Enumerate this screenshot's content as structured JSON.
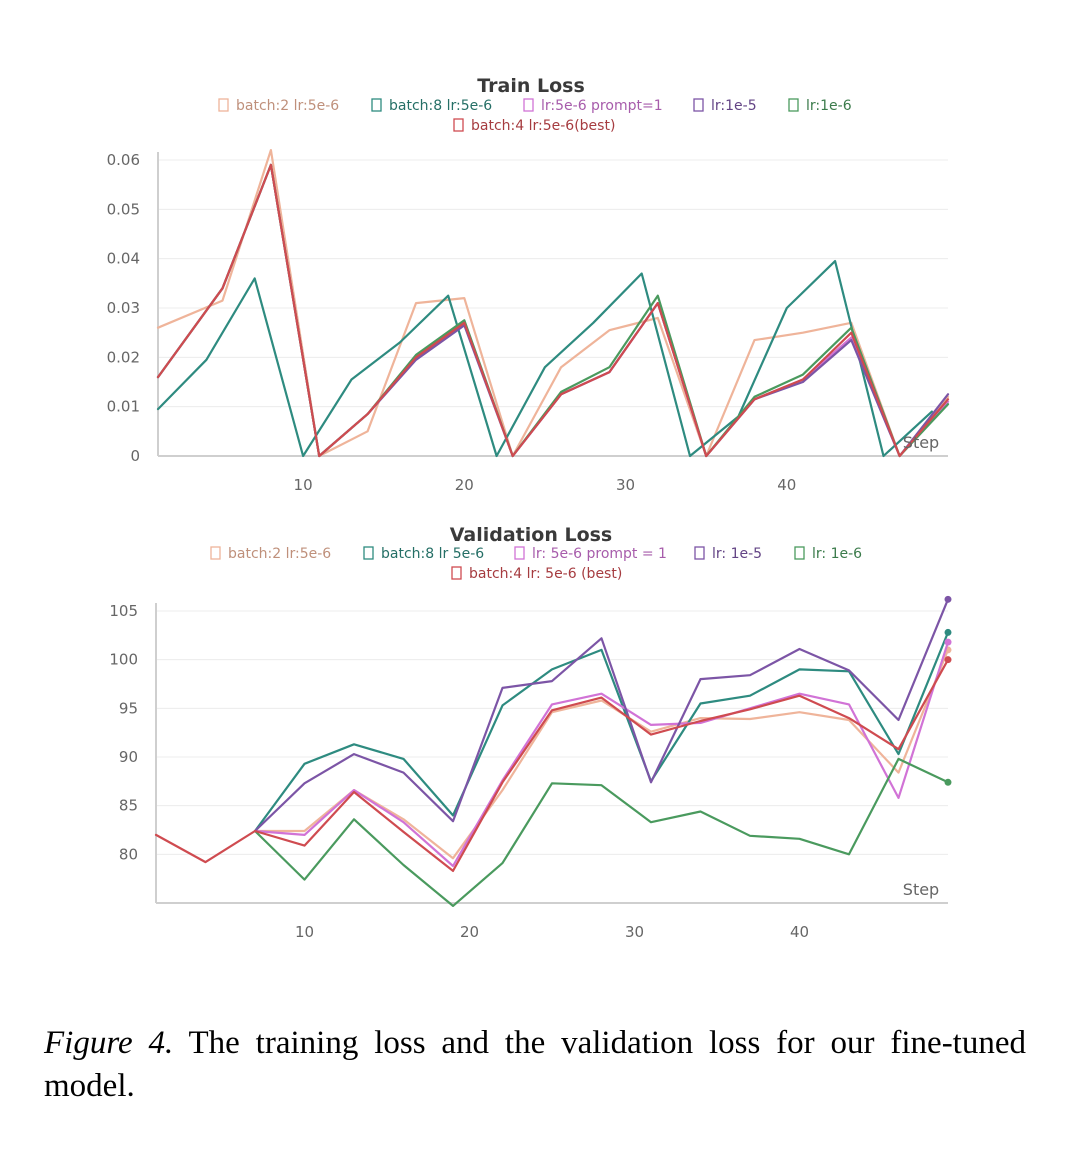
{
  "caption": {
    "label": "Figure 4.",
    "text": "The training loss and the validation loss for our fine-tuned model."
  },
  "colors": {
    "salmon": "#efb49a",
    "teal": "#2e8b80",
    "pink": "#d173d6",
    "purple": "#7c55a6",
    "green": "#4a9a5e",
    "red": "#cf4b50"
  },
  "chart_data": [
    {
      "type": "line",
      "title": "Train Loss",
      "xlabel": "Step",
      "ylabel": "",
      "xlim": [
        1,
        50
      ],
      "ylim": [
        0,
        0.06
      ],
      "x_ticks": [
        "10",
        "20",
        "30",
        "40"
      ],
      "y_ticks": [
        "0",
        "0.01",
        "0.02",
        "0.03",
        "0.04",
        "0.05",
        "0.06"
      ],
      "grid": true,
      "legend_position": "top",
      "series": [
        {
          "name": "batch:2 lr:5e-6",
          "color": "#efb49a",
          "points": [
            [
              1,
              0.026
            ],
            [
              5,
              0.0315
            ],
            [
              8,
              0.062
            ],
            [
              11,
              0
            ],
            [
              14,
              0.005
            ],
            [
              17,
              0.031
            ],
            [
              20,
              0.032
            ],
            [
              23,
              0
            ],
            [
              26,
              0.018
            ],
            [
              29,
              0.0255
            ],
            [
              32,
              0.028
            ],
            [
              35,
              0
            ],
            [
              38,
              0.0235
            ],
            [
              41,
              0.025
            ],
            [
              44,
              0.027
            ],
            [
              47,
              0
            ],
            [
              50,
              0.012
            ]
          ]
        },
        {
          "name": "batch:8 lr:5e-6",
          "color": "#2e8b80",
          "points": [
            [
              1,
              0.0095
            ],
            [
              4,
              0.0195
            ],
            [
              7,
              0.036
            ],
            [
              10,
              0
            ],
            [
              13,
              0.0155
            ],
            [
              16,
              0.023
            ],
            [
              19,
              0.0325
            ],
            [
              22,
              0
            ],
            [
              25,
              0.018
            ],
            [
              28,
              0.027
            ],
            [
              31,
              0.037
            ],
            [
              34,
              0
            ],
            [
              37,
              0.008
            ],
            [
              40,
              0.03
            ],
            [
              43,
              0.0395
            ],
            [
              46,
              0
            ],
            [
              49,
              0.009
            ]
          ]
        },
        {
          "name": "lr:5e-6 prompt=1",
          "color": "#d173d6",
          "points": [
            [
              1,
              0.016
            ],
            [
              5,
              0.034
            ],
            [
              8,
              0.059
            ],
            [
              11,
              0
            ],
            [
              14,
              0.0085
            ],
            [
              17,
              0.02
            ],
            [
              20,
              0.027
            ],
            [
              23,
              0
            ],
            [
              26,
              0.0125
            ],
            [
              29,
              0.017
            ],
            [
              32,
              0.031
            ],
            [
              35,
              0
            ],
            [
              38,
              0.0115
            ],
            [
              41,
              0.0155
            ],
            [
              44,
              0.024
            ],
            [
              47,
              0
            ],
            [
              50,
              0.011
            ]
          ]
        },
        {
          "name": "lr:1e-5",
          "color": "#7c55a6",
          "points": [
            [
              1,
              0.016
            ],
            [
              5,
              0.034
            ],
            [
              8,
              0.059
            ],
            [
              11,
              0
            ],
            [
              14,
              0.0085
            ],
            [
              17,
              0.0195
            ],
            [
              20,
              0.0265
            ],
            [
              23,
              0
            ],
            [
              26,
              0.0125
            ],
            [
              29,
              0.017
            ],
            [
              32,
              0.031
            ],
            [
              35,
              0
            ],
            [
              38,
              0.0115
            ],
            [
              41,
              0.015
            ],
            [
              44,
              0.0235
            ],
            [
              47,
              0
            ],
            [
              50,
              0.0125
            ]
          ]
        },
        {
          "name": "lr:1e-6",
          "color": "#4a9a5e",
          "points": [
            [
              1,
              0.016
            ],
            [
              5,
              0.034
            ],
            [
              8,
              0.059
            ],
            [
              11,
              0
            ],
            [
              14,
              0.0085
            ],
            [
              17,
              0.0205
            ],
            [
              20,
              0.0275
            ],
            [
              23,
              0
            ],
            [
              26,
              0.013
            ],
            [
              29,
              0.018
            ],
            [
              32,
              0.0325
            ],
            [
              35,
              0
            ],
            [
              38,
              0.012
            ],
            [
              41,
              0.0165
            ],
            [
              44,
              0.026
            ],
            [
              47,
              0
            ],
            [
              50,
              0.0105
            ]
          ]
        },
        {
          "name": "batch:4 lr:5e-6(best)",
          "color": "#cf4b50",
          "points": [
            [
              1,
              0.016
            ],
            [
              5,
              0.034
            ],
            [
              8,
              0.059
            ],
            [
              11,
              0
            ],
            [
              14,
              0.0085
            ],
            [
              17,
              0.02
            ],
            [
              20,
              0.027
            ],
            [
              23,
              0
            ],
            [
              26,
              0.0125
            ],
            [
              29,
              0.017
            ],
            [
              32,
              0.031
            ],
            [
              35,
              0
            ],
            [
              38,
              0.0115
            ],
            [
              41,
              0.0155
            ],
            [
              44,
              0.025
            ],
            [
              47,
              0
            ],
            [
              50,
              0.0115
            ]
          ]
        }
      ]
    },
    {
      "type": "line",
      "title": "Validation Loss",
      "xlabel": "Step",
      "ylabel": "",
      "xlim": [
        1,
        49
      ],
      "ylim": [
        75,
        105
      ],
      "x_ticks": [
        "10",
        "20",
        "30",
        "40"
      ],
      "y_ticks": [
        "80",
        "85",
        "90",
        "95",
        "100",
        "105"
      ],
      "grid": true,
      "legend_position": "top",
      "series": [
        {
          "name": "batch:2 lr:5e-6",
          "color": "#efb49a",
          "points": [
            [
              7,
              82.4
            ],
            [
              10,
              82.4
            ],
            [
              13,
              86.6
            ],
            [
              16,
              83.6
            ],
            [
              19,
              79.6
            ],
            [
              22,
              86.6
            ],
            [
              25,
              94.6
            ],
            [
              28,
              95.8
            ],
            [
              31,
              92.6
            ],
            [
              34,
              94.0
            ],
            [
              37,
              93.9
            ],
            [
              40,
              94.6
            ],
            [
              43,
              93.8
            ],
            [
              46,
              88.4
            ],
            [
              49,
              101.0
            ]
          ]
        },
        {
          "name": "batch:8 lr 5e-6",
          "color": "#2e8b80",
          "points": [
            [
              7,
              82.4
            ],
            [
              10,
              89.3
            ],
            [
              13,
              91.3
            ],
            [
              16,
              89.8
            ],
            [
              19,
              84.0
            ],
            [
              22,
              95.3
            ],
            [
              25,
              99.0
            ],
            [
              28,
              101.0
            ],
            [
              31,
              87.5
            ],
            [
              34,
              95.5
            ],
            [
              37,
              96.3
            ],
            [
              40,
              99.0
            ],
            [
              43,
              98.8
            ],
            [
              46,
              90.3
            ],
            [
              49,
              102.8
            ]
          ]
        },
        {
          "name": "lr: 5e-6 prompt = 1",
          "color": "#d173d6",
          "points": [
            [
              7,
              82.4
            ],
            [
              10,
              82.0
            ],
            [
              13,
              86.6
            ],
            [
              16,
              83.3
            ],
            [
              19,
              78.8
            ],
            [
              22,
              87.6
            ],
            [
              25,
              95.4
            ],
            [
              28,
              96.5
            ],
            [
              31,
              93.3
            ],
            [
              34,
              93.5
            ],
            [
              37,
              95.0
            ],
            [
              40,
              96.5
            ],
            [
              43,
              95.4
            ],
            [
              46,
              85.8
            ],
            [
              49,
              101.8
            ]
          ]
        },
        {
          "name": "lr: 1e-5",
          "color": "#7c55a6",
          "points": [
            [
              7,
              82.4
            ],
            [
              10,
              87.3
            ],
            [
              13,
              90.3
            ],
            [
              16,
              88.4
            ],
            [
              19,
              83.4
            ],
            [
              22,
              97.1
            ],
            [
              25,
              97.8
            ],
            [
              28,
              102.2
            ],
            [
              31,
              87.4
            ],
            [
              34,
              98.0
            ],
            [
              37,
              98.4
            ],
            [
              40,
              101.1
            ],
            [
              43,
              98.9
            ],
            [
              46,
              93.8
            ],
            [
              49,
              106.2
            ]
          ]
        },
        {
          "name": "lr: 1e-6",
          "color": "#4a9a5e",
          "points": [
            [
              7,
              82.4
            ],
            [
              10,
              77.4
            ],
            [
              13,
              83.6
            ],
            [
              16,
              78.9
            ],
            [
              19,
              74.7
            ],
            [
              22,
              79.1
            ],
            [
              25,
              87.3
            ],
            [
              28,
              87.1
            ],
            [
              31,
              83.3
            ],
            [
              34,
              84.4
            ],
            [
              37,
              81.9
            ],
            [
              40,
              81.6
            ],
            [
              43,
              80.0
            ],
            [
              46,
              89.8
            ],
            [
              49,
              87.4
            ]
          ]
        },
        {
          "name": "batch:4 lr: 5e-6 (best)",
          "color": "#cf4b50",
          "points": [
            [
              1,
              82.0
            ],
            [
              4,
              79.2
            ],
            [
              7,
              82.4
            ],
            [
              10,
              80.9
            ],
            [
              13,
              86.4
            ],
            [
              16,
              82.3
            ],
            [
              19,
              78.3
            ],
            [
              22,
              87.4
            ],
            [
              25,
              94.8
            ],
            [
              28,
              96.1
            ],
            [
              31,
              92.3
            ],
            [
              34,
              93.7
            ],
            [
              37,
              94.9
            ],
            [
              40,
              96.3
            ],
            [
              43,
              94.0
            ],
            [
              46,
              90.8
            ],
            [
              49,
              100.0
            ]
          ]
        }
      ]
    }
  ]
}
